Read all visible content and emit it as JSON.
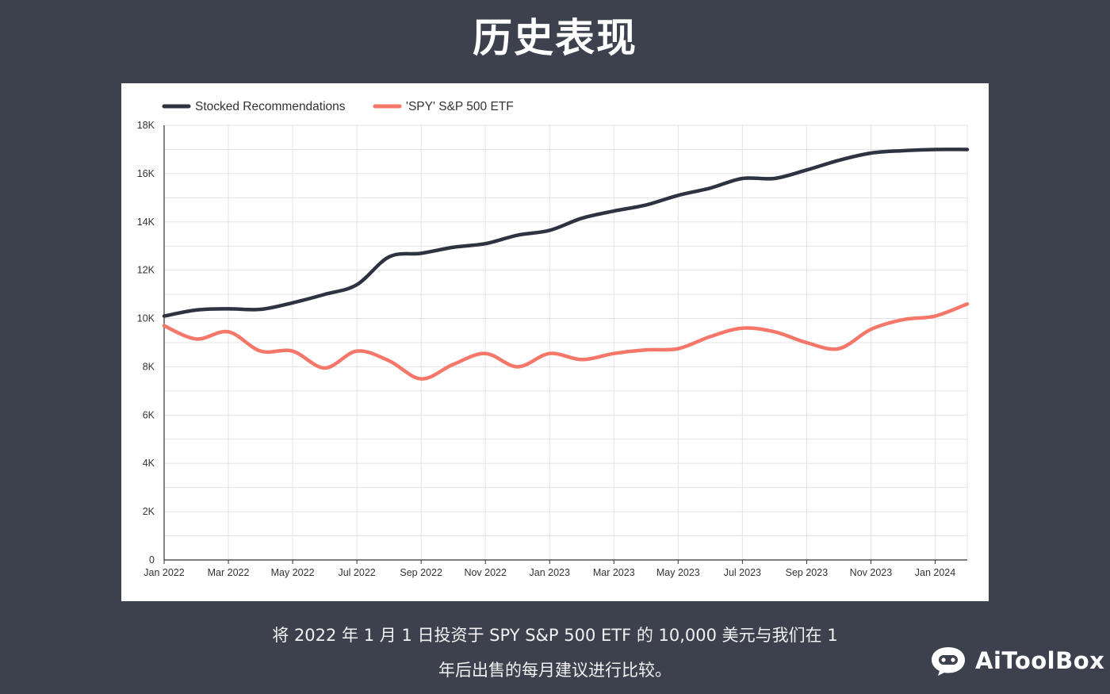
{
  "page": {
    "title": "历史表现",
    "caption_line1": "将 2022 年 1 月 1 日投资于 SPY S&P 500 ETF 的 10,000 美元与我们在 1",
    "caption_line2": "年后出售的每月建议进行比较。",
    "brand": "AiToolBox"
  },
  "colors": {
    "background": "#3d414d",
    "series_stocked": "#2d3340",
    "series_spy": "#f4776a",
    "grid": "#e3e3e3",
    "axis": "#333333"
  },
  "chart_data": {
    "type": "line",
    "title": "",
    "xlabel": "",
    "ylabel": "",
    "ylim": [
      0,
      18000
    ],
    "y_ticks": [
      0,
      2000,
      4000,
      6000,
      8000,
      10000,
      12000,
      14000,
      16000,
      18000
    ],
    "y_tick_labels": [
      "0",
      "2K",
      "4K",
      "6K",
      "8K",
      "10K",
      "12K",
      "14K",
      "16K",
      "18K"
    ],
    "x_month_count": 26,
    "x_tick_labels": [
      {
        "label": "Jan 2022",
        "month_index": 0
      },
      {
        "label": "Mar 2022",
        "month_index": 2
      },
      {
        "label": "May 2022",
        "month_index": 4
      },
      {
        "label": "Jul 2022",
        "month_index": 6
      },
      {
        "label": "Sep 2022",
        "month_index": 8
      },
      {
        "label": "Nov 2022",
        "month_index": 10
      },
      {
        "label": "Jan 2023",
        "month_index": 12
      },
      {
        "label": "Mar 2023",
        "month_index": 14
      },
      {
        "label": "May 2023",
        "month_index": 16
      },
      {
        "label": "Jul 2023",
        "month_index": 18
      },
      {
        "label": "Sep 2023",
        "month_index": 20
      },
      {
        "label": "Nov 2023",
        "month_index": 22
      },
      {
        "label": "Jan 2024",
        "month_index": 24
      }
    ],
    "legend_position": "top-left",
    "series": [
      {
        "name": "Stocked Recommendations",
        "color_key": "series_stocked",
        "points": [
          [
            0,
            10100
          ],
          [
            1,
            10350
          ],
          [
            2,
            10400
          ],
          [
            3,
            10380
          ],
          [
            4,
            10650
          ],
          [
            5,
            11000
          ],
          [
            6,
            11400
          ],
          [
            7,
            12550
          ],
          [
            8,
            12700
          ],
          [
            9,
            12950
          ],
          [
            10,
            13100
          ],
          [
            11,
            13450
          ],
          [
            12,
            13650
          ],
          [
            13,
            14150
          ],
          [
            14,
            14450
          ],
          [
            15,
            14700
          ],
          [
            16,
            15100
          ],
          [
            17,
            15400
          ],
          [
            18,
            15800
          ],
          [
            19,
            15800
          ],
          [
            20,
            16150
          ],
          [
            21,
            16550
          ],
          [
            22,
            16850
          ],
          [
            23,
            16950
          ],
          [
            24,
            17000
          ],
          [
            25,
            17000
          ]
        ]
      },
      {
        "name": "'SPY' S&P 500 ETF",
        "color_key": "series_spy",
        "points": [
          [
            0,
            9700
          ],
          [
            1,
            9150
          ],
          [
            2,
            9450
          ],
          [
            3,
            8650
          ],
          [
            4,
            8650
          ],
          [
            5,
            7950
          ],
          [
            6,
            8650
          ],
          [
            7,
            8250
          ],
          [
            8,
            7500
          ],
          [
            9,
            8100
          ],
          [
            10,
            8550
          ],
          [
            11,
            8000
          ],
          [
            12,
            8550
          ],
          [
            13,
            8300
          ],
          [
            14,
            8550
          ],
          [
            15,
            8700
          ],
          [
            16,
            8750
          ],
          [
            17,
            9250
          ],
          [
            18,
            9600
          ],
          [
            19,
            9450
          ],
          [
            20,
            9000
          ],
          [
            21,
            8750
          ],
          [
            22,
            9550
          ],
          [
            23,
            9950
          ],
          [
            24,
            10100
          ],
          [
            25,
            10600
          ]
        ]
      }
    ]
  }
}
